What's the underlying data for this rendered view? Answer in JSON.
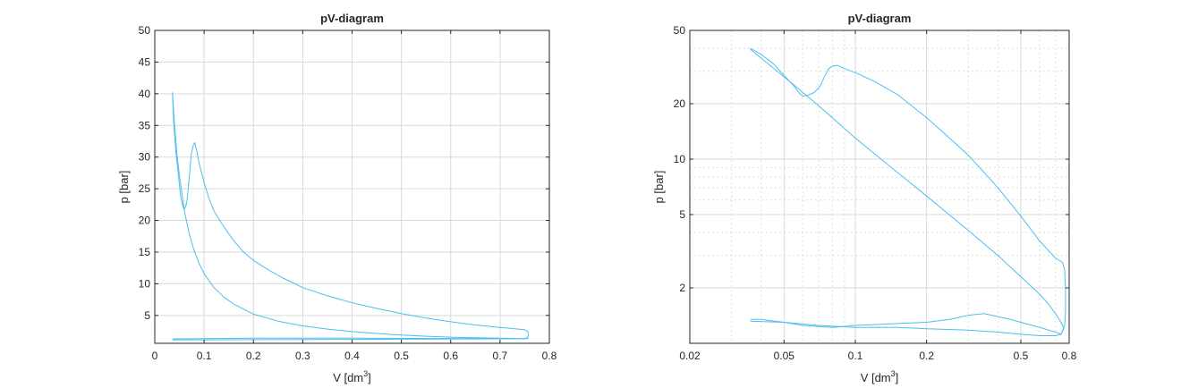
{
  "chart_data": [
    {
      "type": "line",
      "scale": "linear",
      "title": "pV-diagram",
      "xlabel": "V [dm",
      "xlabel_sup": "3",
      "xlabel_end": "]",
      "ylabel": "p [bar]",
      "xlim": [
        0,
        0.8
      ],
      "ylim": [
        0.6,
        50
      ],
      "xticks": [
        0,
        0.1,
        0.2,
        0.3,
        0.4,
        0.5,
        0.6,
        0.7,
        0.8
      ],
      "xtick_labels": [
        "0",
        "0.1",
        "0.2",
        "0.3",
        "0.4",
        "0.5",
        "0.6",
        "0.7",
        "0.8"
      ],
      "yticks": [
        5,
        10,
        15,
        20,
        25,
        30,
        35,
        40,
        45,
        50
      ],
      "ytick_labels": [
        "5",
        "10",
        "15",
        "20",
        "25",
        "30",
        "35",
        "40",
        "45",
        "50"
      ],
      "grid": true,
      "color": "#4dbeee",
      "series": [
        {
          "values": [
            [
              0.036,
              40.2
            ],
            [
              0.038,
              36.0
            ],
            [
              0.04,
              33.5
            ],
            [
              0.043,
              30.5
            ],
            [
              0.046,
              28.5
            ],
            [
              0.05,
              25.5
            ],
            [
              0.053,
              23.5
            ],
            [
              0.056,
              22.5
            ],
            [
              0.058,
              22.0
            ],
            [
              0.06,
              21.8
            ],
            [
              0.063,
              22.2
            ],
            [
              0.066,
              23.5
            ],
            [
              0.07,
              27.0
            ],
            [
              0.074,
              30.5
            ],
            [
              0.078,
              31.8
            ],
            [
              0.081,
              32.3
            ],
            [
              0.085,
              31.0
            ],
            [
              0.09,
              29.0
            ],
            [
              0.1,
              26.0
            ],
            [
              0.11,
              23.5
            ],
            [
              0.12,
              21.5
            ],
            [
              0.14,
              19.0
            ],
            [
              0.16,
              16.8
            ],
            [
              0.18,
              15.0
            ],
            [
              0.2,
              13.7
            ],
            [
              0.23,
              12.2
            ],
            [
              0.26,
              10.9
            ],
            [
              0.3,
              9.4
            ],
            [
              0.35,
              8.1
            ],
            [
              0.4,
              7.0
            ],
            [
              0.45,
              6.1
            ],
            [
              0.5,
              5.3
            ],
            [
              0.55,
              4.6
            ],
            [
              0.6,
              4.0
            ],
            [
              0.65,
              3.5
            ],
            [
              0.7,
              3.1
            ],
            [
              0.73,
              2.9
            ],
            [
              0.75,
              2.75
            ],
            [
              0.757,
              2.4
            ],
            [
              0.757,
              1.6
            ],
            [
              0.75,
              1.35
            ],
            [
              0.7,
              1.3
            ],
            [
              0.6,
              1.28
            ],
            [
              0.5,
              1.25
            ],
            [
              0.4,
              1.22
            ],
            [
              0.3,
              1.2
            ],
            [
              0.2,
              1.18
            ],
            [
              0.1,
              1.15
            ],
            [
              0.036,
              1.15
            ]
          ]
        },
        {
          "values": [
            [
              0.036,
              40.0
            ],
            [
              0.04,
              35.0
            ],
            [
              0.045,
              30.5
            ],
            [
              0.05,
              27.0
            ],
            [
              0.06,
              21.5
            ],
            [
              0.07,
              17.8
            ],
            [
              0.08,
              15.2
            ],
            [
              0.09,
              13.2
            ],
            [
              0.1,
              11.6
            ],
            [
              0.12,
              9.4
            ],
            [
              0.14,
              7.9
            ],
            [
              0.16,
              6.8
            ],
            [
              0.2,
              5.2
            ],
            [
              0.25,
              4.1
            ],
            [
              0.3,
              3.35
            ],
            [
              0.35,
              2.85
            ],
            [
              0.4,
              2.45
            ],
            [
              0.45,
              2.15
            ],
            [
              0.5,
              1.9
            ],
            [
              0.55,
              1.72
            ],
            [
              0.6,
              1.58
            ],
            [
              0.65,
              1.48
            ],
            [
              0.7,
              1.4
            ],
            [
              0.74,
              1.36
            ],
            [
              0.757,
              1.34
            ],
            [
              0.7,
              1.34
            ],
            [
              0.6,
              1.36
            ],
            [
              0.5,
              1.38
            ],
            [
              0.4,
              1.4
            ],
            [
              0.3,
              1.42
            ],
            [
              0.2,
              1.4
            ],
            [
              0.1,
              1.35
            ],
            [
              0.036,
              1.3
            ]
          ]
        }
      ]
    },
    {
      "type": "line",
      "scale": "loglog",
      "title": "pV-diagram",
      "xlabel": "V [dm",
      "xlabel_sup": "3",
      "xlabel_end": "]",
      "ylabel": "p [bar]",
      "xlim": [
        0.02,
        0.8
      ],
      "ylim": [
        1.0,
        50
      ],
      "xticks": [
        0.02,
        0.05,
        0.1,
        0.2,
        0.5,
        0.8
      ],
      "xtick_labels": [
        "0.02",
        "0.05",
        "0.1",
        "0.2",
        "0.5",
        "0.8"
      ],
      "yticks": [
        2,
        5,
        10,
        20,
        50
      ],
      "ytick_labels": [
        "2",
        "5",
        "10",
        "20",
        "50"
      ],
      "grid": true,
      "color": "#4dbeee",
      "series": [
        {
          "values": [
            [
              0.036,
              40.0
            ],
            [
              0.04,
              37.0
            ],
            [
              0.045,
              33.0
            ],
            [
              0.05,
              28.5
            ],
            [
              0.055,
              25.0
            ],
            [
              0.058,
              22.8
            ],
            [
              0.06,
              22.0
            ],
            [
              0.063,
              22.2
            ],
            [
              0.067,
              23.0
            ],
            [
              0.071,
              24.8
            ],
            [
              0.074,
              28.0
            ],
            [
              0.077,
              30.8
            ],
            [
              0.08,
              32.0
            ],
            [
              0.084,
              32.3
            ],
            [
              0.09,
              31.0
            ],
            [
              0.1,
              29.5
            ],
            [
              0.12,
              26.5
            ],
            [
              0.15,
              22.5
            ],
            [
              0.2,
              16.8
            ],
            [
              0.25,
              13.0
            ],
            [
              0.3,
              10.5
            ],
            [
              0.4,
              7.0
            ],
            [
              0.5,
              4.9
            ],
            [
              0.6,
              3.6
            ],
            [
              0.7,
              2.9
            ],
            [
              0.75,
              2.75
            ],
            [
              0.765,
              2.5
            ],
            [
              0.772,
              2.0
            ],
            [
              0.772,
              1.5
            ],
            [
              0.765,
              1.25
            ],
            [
              0.74,
              1.12
            ],
            [
              0.7,
              1.15
            ],
            [
              0.6,
              1.22
            ],
            [
              0.5,
              1.3
            ],
            [
              0.45,
              1.35
            ],
            [
              0.35,
              1.45
            ],
            [
              0.3,
              1.42
            ],
            [
              0.25,
              1.35
            ],
            [
              0.2,
              1.3
            ],
            [
              0.15,
              1.28
            ],
            [
              0.1,
              1.25
            ],
            [
              0.08,
              1.22
            ],
            [
              0.06,
              1.25
            ],
            [
              0.05,
              1.3
            ],
            [
              0.04,
              1.35
            ],
            [
              0.036,
              1.35
            ]
          ]
        },
        {
          "values": [
            [
              0.036,
              39.5
            ],
            [
              0.05,
              28.0
            ],
            [
              0.07,
              19.5
            ],
            [
              0.1,
              13.0
            ],
            [
              0.15,
              8.5
            ],
            [
              0.2,
              6.3
            ],
            [
              0.3,
              4.1
            ],
            [
              0.4,
              3.0
            ],
            [
              0.5,
              2.3
            ],
            [
              0.6,
              1.85
            ],
            [
              0.65,
              1.65
            ],
            [
              0.7,
              1.45
            ],
            [
              0.74,
              1.3
            ],
            [
              0.76,
              1.2
            ],
            [
              0.74,
              1.12
            ],
            [
              0.7,
              1.1
            ],
            [
              0.6,
              1.1
            ],
            [
              0.5,
              1.12
            ],
            [
              0.4,
              1.15
            ],
            [
              0.3,
              1.18
            ],
            [
              0.2,
              1.2
            ],
            [
              0.15,
              1.22
            ],
            [
              0.1,
              1.22
            ],
            [
              0.07,
              1.25
            ],
            [
              0.05,
              1.3
            ],
            [
              0.036,
              1.32
            ]
          ]
        }
      ]
    }
  ]
}
